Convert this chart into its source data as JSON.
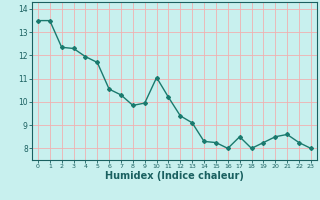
{
  "x": [
    0,
    1,
    2,
    3,
    4,
    5,
    6,
    7,
    8,
    9,
    10,
    11,
    12,
    13,
    14,
    15,
    16,
    17,
    18,
    19,
    20,
    21,
    22,
    23
  ],
  "y": [
    13.5,
    13.5,
    12.35,
    12.3,
    11.95,
    11.7,
    10.55,
    10.3,
    9.85,
    9.95,
    11.05,
    10.2,
    9.4,
    9.1,
    8.3,
    8.25,
    8.0,
    8.5,
    8.0,
    8.25,
    8.5,
    8.6,
    8.25,
    8.0
  ],
  "line_color": "#1a7a6e",
  "marker": "D",
  "markersize": 2.0,
  "linewidth": 1.0,
  "xlabel": "Humidex (Indice chaleur)",
  "xlabel_fontsize": 7,
  "xlabel_color": "#1a6060",
  "ylim": [
    7.5,
    14.3
  ],
  "xlim": [
    -0.5,
    23.5
  ],
  "yticks": [
    8,
    9,
    10,
    11,
    12,
    13,
    14
  ],
  "xticks": [
    0,
    1,
    2,
    3,
    4,
    5,
    6,
    7,
    8,
    9,
    10,
    11,
    12,
    13,
    14,
    15,
    16,
    17,
    18,
    19,
    20,
    21,
    22,
    23
  ],
  "bg_color": "#c8f0ee",
  "grid_color": "#f0b0b0",
  "tick_color": "#1a6060",
  "ytick_fontsize": 5.5,
  "xtick_fontsize": 4.5,
  "axis_color": "#1a6060"
}
